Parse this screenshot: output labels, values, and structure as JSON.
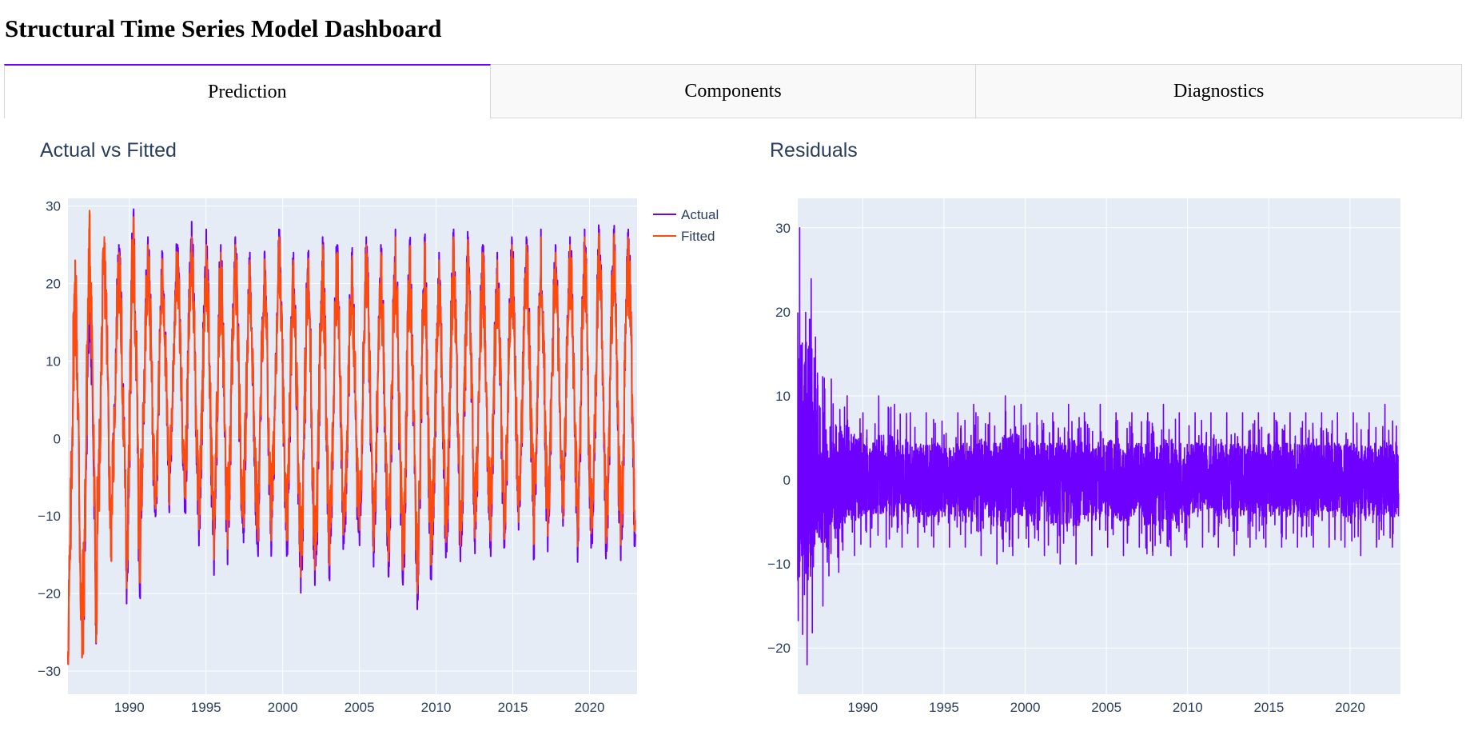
{
  "page_title": "Structural Time Series Model Dashboard",
  "tabs": [
    {
      "label": "Prediction",
      "active": true
    },
    {
      "label": "Components",
      "active": false
    },
    {
      "label": "Diagnostics",
      "active": false
    }
  ],
  "colors": {
    "actual": "#6e00ff",
    "fitted": "#ff4a0a",
    "residuals": "#6e00ff",
    "plot_bg": "#e5ecf6",
    "grid": "#ffffff",
    "accent": "#6e00ff"
  },
  "chart_data": [
    {
      "type": "line",
      "title": "Actual vs Fitted",
      "xlabel": "",
      "ylabel": "",
      "xlim": [
        1986.0,
        2023.1
      ],
      "ylim": [
        -33,
        31
      ],
      "x_ticks": [
        1990,
        1995,
        2000,
        2005,
        2010,
        2015,
        2020
      ],
      "y_ticks": [
        -30,
        -20,
        -10,
        0,
        10,
        20,
        30
      ],
      "grid": true,
      "legend": "top-right",
      "series": [
        {
          "name": "Actual",
          "x_start": 1986.0,
          "x_end": 2023.0,
          "peaks": [
            23,
            24,
            26,
            25,
            29,
            26,
            24,
            25,
            28,
            27,
            25,
            26,
            24,
            24,
            27,
            24,
            24,
            26,
            25,
            24,
            26,
            25,
            27,
            25,
            26,
            24,
            27,
            26,
            25,
            24,
            26,
            26,
            27,
            25,
            26,
            27,
            27,
            27,
            27
          ],
          "troughs": [
            -30,
            -28,
            -15,
            -10,
            -23,
            -10,
            -10,
            -5,
            -11,
            -13,
            -18,
            -13,
            -14,
            -16,
            -12,
            -17,
            -19,
            -19,
            -16,
            -15,
            -14,
            -16,
            -18,
            -20,
            -21,
            -16,
            -16,
            -16,
            -12,
            -15,
            -13,
            -11,
            -16,
            -11,
            -11,
            -16,
            -16,
            -16,
            -15
          ]
        },
        {
          "name": "Fitted",
          "x_start": 1986.0,
          "x_end": 2023.0,
          "peaks": [
            23,
            29,
            26,
            24,
            28,
            25,
            23,
            24,
            26,
            25,
            24,
            25,
            23,
            23,
            26,
            23,
            23,
            25,
            24,
            23,
            25,
            24,
            26,
            24,
            25,
            23,
            26,
            25,
            24,
            23,
            25,
            25,
            26,
            24,
            25,
            26,
            26,
            26,
            26
          ],
          "troughs": [
            -30,
            -28,
            -15,
            -10,
            -21,
            -9,
            -9,
            -4,
            -9,
            -11,
            -16,
            -12,
            -12,
            -14,
            -11,
            -15,
            -17,
            -17,
            -14,
            -13,
            -12,
            -14,
            -16,
            -18,
            -19,
            -14,
            -14,
            -14,
            -11,
            -13,
            -12,
            -10,
            -14,
            -10,
            -10,
            -14,
            -14,
            -14,
            -13
          ]
        }
      ]
    },
    {
      "type": "line",
      "title": "Residuals",
      "xlabel": "",
      "ylabel": "",
      "xlim": [
        1986.0,
        2023.1
      ],
      "ylim": [
        -25.5,
        33.5
      ],
      "x_ticks": [
        1990,
        1995,
        2000,
        2005,
        2010,
        2015,
        2020
      ],
      "y_ticks": [
        -20,
        -10,
        0,
        10,
        20,
        30
      ],
      "grid": true,
      "series": [
        {
          "name": "",
          "x_start": 1986.0,
          "x_end": 2023.0,
          "envelope_max": [
            30,
            17,
            12,
            10,
            8,
            10,
            9,
            8,
            8,
            7,
            8,
            9,
            8,
            10,
            9,
            8,
            8,
            9,
            8,
            9,
            8,
            8,
            8,
            9,
            8,
            8,
            8,
            8,
            8,
            8,
            8,
            8,
            8,
            8,
            8,
            8,
            8,
            9
          ],
          "envelope_min": [
            -22,
            -15,
            -11,
            -9,
            -8,
            -8,
            -8,
            -8,
            -8,
            -8,
            -8,
            -9,
            -10,
            -9,
            -8,
            -9,
            -10,
            -10,
            -9,
            -8,
            -9,
            -8,
            -10,
            -9,
            -8,
            -8,
            -8,
            -9,
            -8,
            -8,
            -8,
            -8,
            -8,
            -8,
            -8,
            -9,
            -8,
            -8
          ]
        }
      ]
    }
  ]
}
